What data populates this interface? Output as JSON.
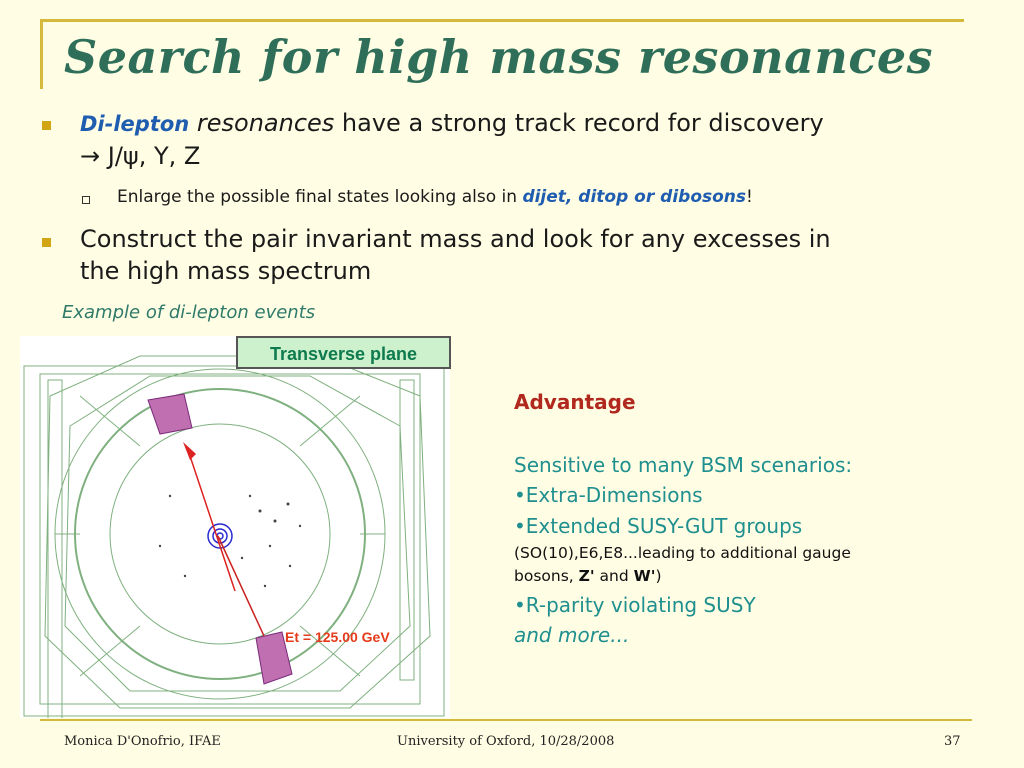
{
  "slide": {
    "title": "Search for high mass resonances",
    "bullet1": {
      "lead": "Di-lepton",
      "ital": " resonances",
      "rest": " have a strong track record for discovery",
      "line2": "→ J/ψ, Υ, Z"
    },
    "sub1": {
      "text": "Enlarge the possible final states looking also in ",
      "highlight": "dijet, ditop or dibosons",
      "end": "!"
    },
    "bullet2": {
      "line1": "Construct the pair invariant mass  and look for any excesses in",
      "line2": "the high mass spectrum"
    },
    "example_caption": "Example of di-lepton events",
    "event_display": {
      "label": "Transverse plane",
      "et_label": "Et = 125.00 GeV"
    },
    "right": {
      "advantage": "Advantage",
      "line1": "Sensitive to many BSM scenarios:",
      "line2": "•Extra-Dimensions",
      "line3": "•Extended SUSY-GUT groups",
      "small1": "(SO(10),E6,E8...leading to additional gauge",
      "small2a": "bosons, ",
      "z_prime": "Z'",
      "small2b": " and ",
      "w_prime": "W'",
      "small2c": ")",
      "line4": "•R-parity violating SUSY",
      "line5": "and more..."
    },
    "footer": {
      "author": "Monica D'Onofrio, IFAE",
      "venue": "University of Oxford, 10/28/2008",
      "page": "37"
    }
  },
  "colors": {
    "background": "#fffde3",
    "title": "#2f6f5a",
    "accent_line": "#d4b93a",
    "bullet": "#d2a514",
    "highlight_blue": "#1f5db0",
    "teal_text": "#1f8f8f",
    "advantage_red": "#b0281e"
  }
}
